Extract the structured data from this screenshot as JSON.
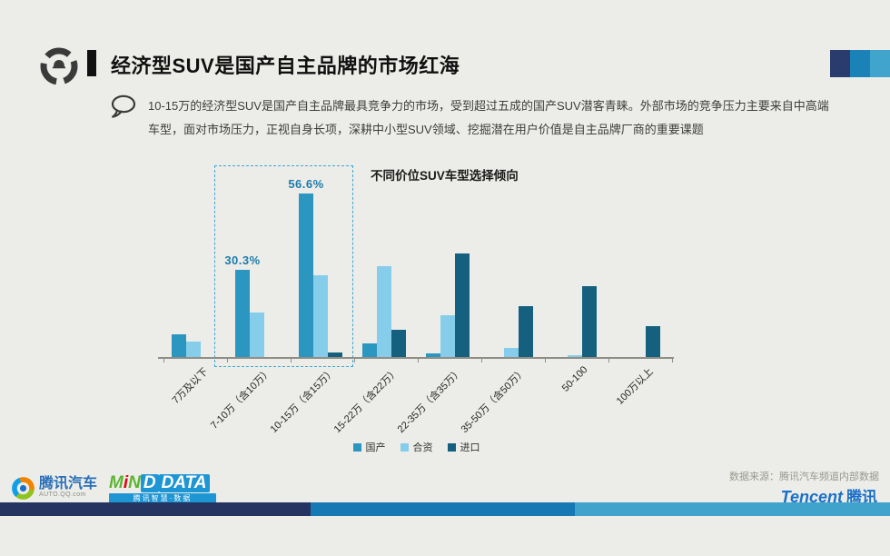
{
  "slide": {
    "bg": "#ecede8",
    "accent_navy": "#2a3c6e",
    "accent_blue": "#1b82b8",
    "accent_light_blue": "#41a4cd",
    "bottombar_navy": "#263461",
    "bottombar_blue": "#1779b3",
    "bottombar_light": "#3fa3cc"
  },
  "header": {
    "title": "经济型SUV是国产自主品牌的市场红海"
  },
  "intro": {
    "lines": [
      "10-15万的经济型SUV是国产自主品牌最具竞争力的市场，受到超过五成的国产SUV潜客青睐。外部市场的竞争压力主要来自中高端",
      "车型，面对市场压力，正视自身长项，深耕中小型SUV领域、挖掘潜在用户价值是自主品牌厂商的重要课题"
    ]
  },
  "chart_data": {
    "type": "bar",
    "title": "不同价位SUV车型选择倾向",
    "categories": [
      "7万及以下",
      "7-10万（含10万）",
      "10-15万（含15万）",
      "15-22万（含22万）",
      "22-35万（含35万）",
      "35-50万（含50万）",
      "50-100",
      "100万以上"
    ],
    "series": [
      {
        "name": "国产",
        "color": "#2b96c0",
        "values": [
          7.9,
          30.3,
          56.6,
          4.7,
          1.3,
          0,
          0,
          0
        ]
      },
      {
        "name": "合资",
        "color": "#85cdea",
        "values": [
          5.3,
          15.4,
          28.3,
          31.4,
          14.5,
          3.1,
          0.6,
          0
        ]
      },
      {
        "name": "进口",
        "color": "#14607e",
        "values": [
          0,
          0,
          1.6,
          9.4,
          35.8,
          17.6,
          24.5,
          10.7
        ]
      }
    ],
    "data_labels": [
      {
        "series": 0,
        "category": 1,
        "text": "30.3%"
      },
      {
        "series": 0,
        "category": 2,
        "text": "56.6%"
      }
    ],
    "highlight": {
      "from_category": 1,
      "to_category": 2
    },
    "xlabel": "",
    "ylabel": "",
    "ylim": [
      0,
      60
    ],
    "grid": false,
    "legend_position": "bottom"
  },
  "footer": {
    "auto_logo": {
      "cn": "腾讯汽车",
      "sub": "AUTO.QQ.com"
    },
    "mind_logo": {
      "m": "M",
      "i": "i",
      "n": "N",
      "d": "D",
      "data": "DATA",
      "sub": "腾讯智慧·数据"
    },
    "source": "数据来源：腾讯汽车频道内部数据",
    "tencent_logo": {
      "en": "Tencent",
      "cn": "腾讯"
    }
  }
}
